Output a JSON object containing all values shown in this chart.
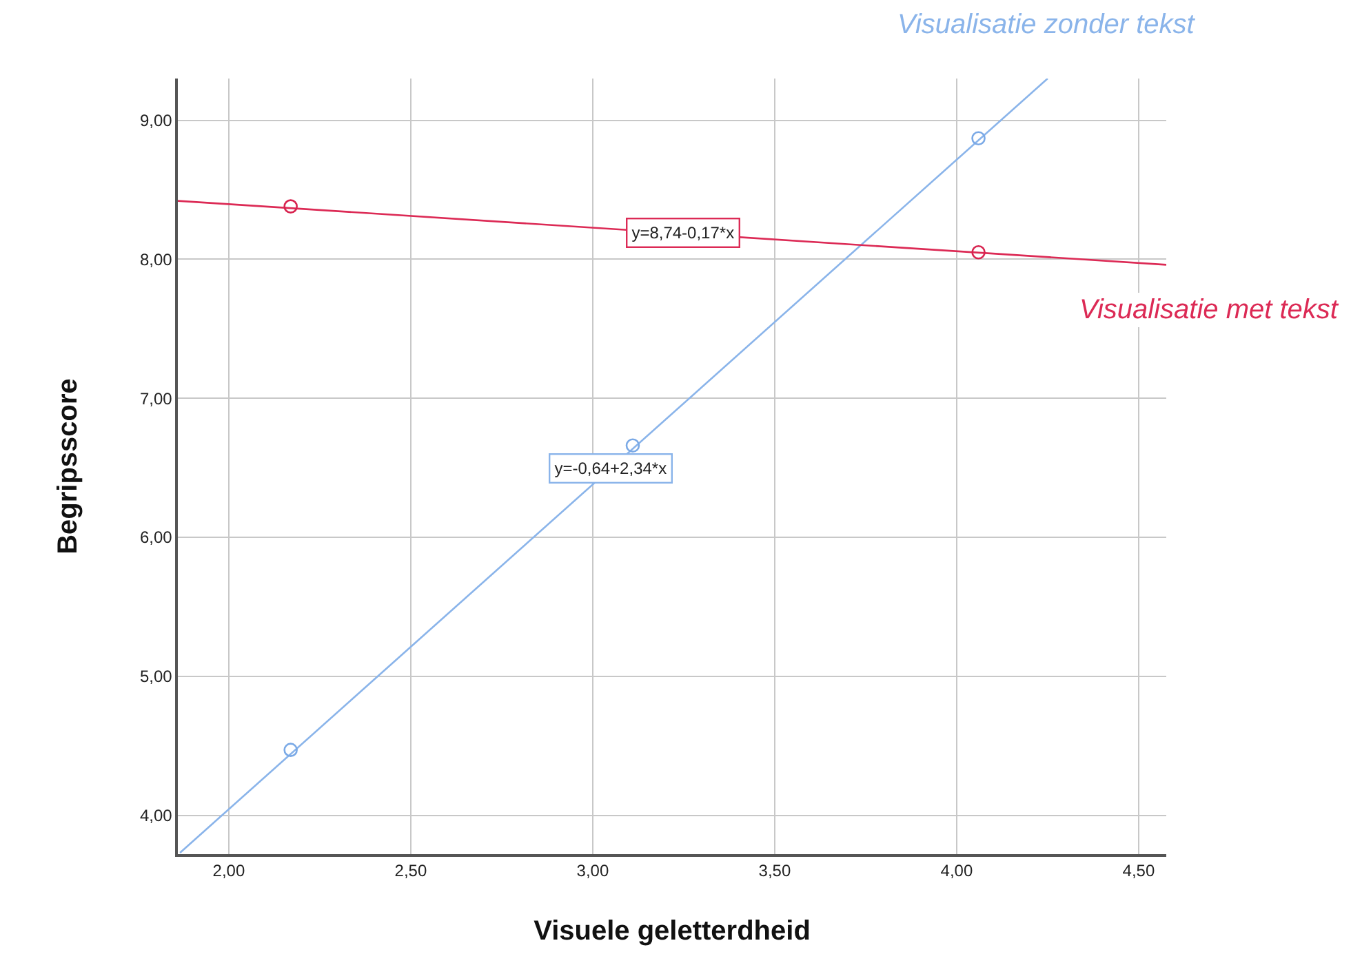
{
  "chart_data": {
    "type": "scatter",
    "xlabel": "Visuele geletterdheid",
    "ylabel": "Begripsscore",
    "series": [
      {
        "type": "line",
        "name": "Visualisatie zonder tekst",
        "color": "#8ab4ea",
        "x": [
          1.866,
          4.25
        ],
        "values": [
          3.73,
          9.3
        ],
        "marker": "none"
      },
      {
        "type": "line",
        "name": "Visualisatie met tekst",
        "color": "#dc2a55",
        "x": [
          1.86,
          4.576
        ],
        "values": [
          8.42,
          7.96
        ],
        "marker": "none"
      },
      {
        "color": "#7aa9e6",
        "x": [
          2.17,
          3.11,
          4.06
        ],
        "values": [
          4.47,
          6.66,
          8.87
        ],
        "marker": "circle"
      },
      {
        "color": "#d8234f",
        "x": [
          2.17,
          4.06
        ],
        "values": [
          8.38,
          8.05
        ],
        "marker": "circle"
      }
    ],
    "annotations": [
      {
        "text": "y=8,74-0,17*x",
        "x": 3.25,
        "y": 8.19
      },
      {
        "text": "y=-0,64+2,34*x",
        "x": 3.05,
        "y": 6.5
      }
    ],
    "xlim": [
      1.86,
      4.576
    ],
    "ylim": [
      3.72,
      9.3
    ],
    "xticks": [
      {
        "value": 2,
        "label": "2,00"
      },
      {
        "value": 2.5,
        "label": "2,50"
      },
      {
        "value": 3,
        "label": "3,00"
      },
      {
        "value": 3.5,
        "label": "3,50"
      },
      {
        "value": 4,
        "label": "4,00"
      },
      {
        "value": 4.5,
        "label": "4,50"
      }
    ],
    "yticks": [
      {
        "value": 4,
        "label": "4,00"
      },
      {
        "value": 5,
        "label": "5,00"
      },
      {
        "value": 6,
        "label": "6,00"
      },
      {
        "value": 7,
        "label": "7,00"
      },
      {
        "value": 8,
        "label": "8,00"
      },
      {
        "value": 9,
        "label": "9,00"
      }
    ],
    "grid": true,
    "legend": false
  }
}
